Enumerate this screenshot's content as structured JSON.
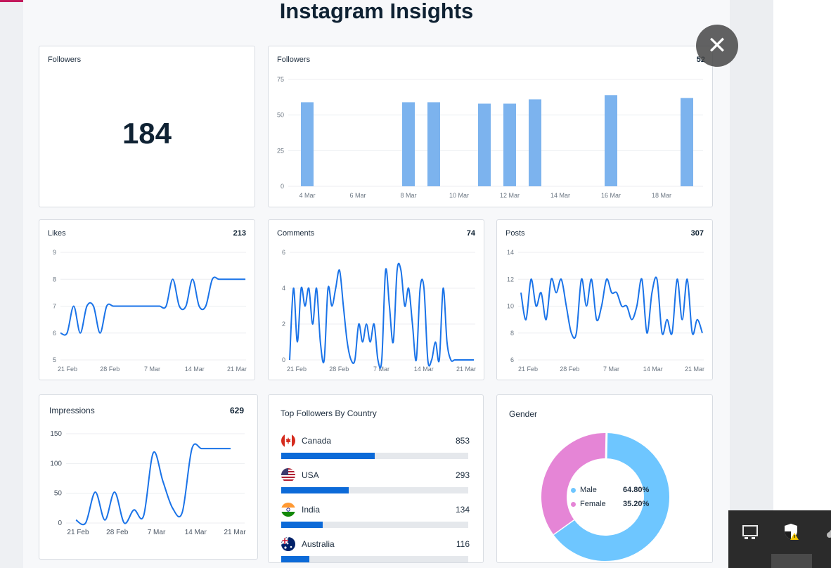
{
  "app": {
    "title": "Instagram Insights"
  },
  "cards": {
    "followers_total": {
      "title": "Followers",
      "value": "184"
    },
    "followers_daily": {
      "title": "Followers",
      "total": "52",
      "chart_data": {
        "type": "bar",
        "x_ticks": [
          "4 Mar",
          "6 Mar",
          "8 Mar",
          "10 Mar",
          "12 Mar",
          "14 Mar",
          "16 Mar",
          "18 Mar"
        ],
        "y_ticks": [
          "0",
          "25",
          "50",
          "75"
        ],
        "ylim": [
          0,
          75
        ],
        "categories": [
          "4 Mar",
          "8 Mar",
          "9 Mar",
          "11 Mar",
          "12 Mar",
          "13 Mar",
          "16 Mar",
          "19 Mar"
        ],
        "values": [
          59,
          59,
          59,
          58,
          58,
          61,
          64,
          62
        ],
        "color": "#7cb3ee"
      }
    },
    "likes": {
      "title": "Likes",
      "total": "213",
      "chart_data": {
        "type": "line",
        "x_ticks": [
          "21 Feb",
          "28 Feb",
          "7 Mar",
          "14 Mar",
          "21 Mar"
        ],
        "y_ticks": [
          "5",
          "6",
          "7",
          "8",
          "9"
        ],
        "ylim": [
          5,
          9
        ],
        "x": [
          0,
          1,
          2,
          3,
          4,
          5,
          6,
          7,
          8,
          9,
          10,
          11,
          12,
          13,
          14,
          15,
          16,
          17,
          18,
          19,
          20,
          21,
          22,
          23,
          24,
          25,
          26,
          27,
          28
        ],
        "values": [
          6,
          6,
          7,
          6,
          7,
          7,
          6,
          7,
          7,
          7,
          7,
          7,
          7,
          7,
          7,
          7,
          7,
          8,
          7,
          7,
          8,
          7,
          7,
          8,
          8,
          8,
          8,
          8,
          8
        ],
        "color": "#1a73e8"
      }
    },
    "comments": {
      "title": "Comments",
      "total": "74",
      "chart_data": {
        "type": "line",
        "x_ticks": [
          "21 Feb",
          "28 Feb",
          "7 Mar",
          "14 Mar",
          "21 Mar"
        ],
        "y_ticks": [
          "0",
          "2",
          "4",
          "6"
        ],
        "ylim": [
          0,
          6
        ],
        "x": [
          0,
          1,
          2,
          3,
          4,
          5,
          6,
          7,
          8,
          9,
          10,
          11,
          12,
          13,
          14,
          15,
          16,
          17,
          18,
          19,
          20,
          21,
          22,
          23,
          24,
          25,
          26,
          27,
          28,
          29,
          30,
          31,
          32,
          33,
          34,
          35,
          36,
          37,
          38,
          39,
          40,
          41,
          42,
          43,
          44,
          45,
          46,
          47,
          48
        ],
        "values": [
          0,
          4,
          1,
          4,
          3,
          4,
          2,
          4,
          1,
          0,
          4,
          3,
          4,
          5,
          3,
          1,
          0,
          0,
          2,
          1,
          2,
          1,
          2,
          0,
          0,
          5,
          3,
          1,
          5,
          5,
          3,
          4,
          2,
          0,
          4,
          4,
          0,
          0,
          1,
          0,
          4,
          1,
          0,
          0,
          0,
          0,
          0,
          0,
          0
        ],
        "color": "#1a73e8"
      }
    },
    "posts": {
      "title": "Posts",
      "total": "307",
      "chart_data": {
        "type": "line",
        "x_ticks": [
          "21 Feb",
          "28 Feb",
          "7 Mar",
          "14 Mar",
          "21 Mar"
        ],
        "y_ticks": [
          "6",
          "8",
          "10",
          "12",
          "14"
        ],
        "ylim": [
          6,
          14
        ],
        "x": [
          0,
          1,
          2,
          3,
          4,
          5,
          6,
          7,
          8,
          9,
          10,
          11,
          12,
          13,
          14,
          15,
          16,
          17,
          18,
          19,
          20,
          21,
          22,
          23,
          24,
          25,
          26,
          27,
          28,
          29,
          30,
          31,
          32,
          33,
          34,
          35,
          36
        ],
        "values": [
          11,
          9,
          12,
          10,
          11,
          9,
          12,
          11,
          12,
          10,
          8,
          8,
          12,
          10,
          12,
          9,
          10,
          12,
          11,
          11,
          10,
          10,
          9,
          10,
          12,
          8,
          11,
          12,
          8,
          9,
          8,
          12,
          9,
          12,
          8,
          9,
          8
        ],
        "color": "#1a73e8"
      }
    },
    "impressions": {
      "title": "Impressions",
      "total": "629",
      "chart_data": {
        "type": "line",
        "x_ticks": [
          "21 Feb",
          "28 Feb",
          "7 Mar",
          "14 Mar",
          "21 Mar"
        ],
        "y_ticks": [
          "0",
          "50",
          "100",
          "150"
        ],
        "ylim": [
          0,
          150
        ],
        "x": [
          0,
          1,
          2,
          3,
          4,
          5,
          6,
          7,
          8,
          9,
          10,
          11,
          12,
          13,
          14,
          15,
          16
        ],
        "values": [
          5,
          0,
          52,
          5,
          52,
          0,
          22,
          12,
          118,
          70,
          25,
          18,
          125,
          125,
          125,
          125,
          125
        ],
        "color": "#1a73e8"
      }
    },
    "top_countries": {
      "title": "Top Followers By Country",
      "items": [
        {
          "name": "Canada",
          "count": "853",
          "share": 0.5,
          "flag": "canada-flag"
        },
        {
          "name": "USA",
          "count": "293",
          "share": 0.36,
          "flag": "usa-flag"
        },
        {
          "name": "India",
          "count": "134",
          "share": 0.22,
          "flag": "india-flag"
        },
        {
          "name": "Australia",
          "count": "116",
          "share": 0.15,
          "flag": "australia-flag"
        }
      ]
    },
    "gender": {
      "title": "Gender",
      "chart_data": {
        "type": "pie",
        "labels": [
          "Male",
          "Female"
        ],
        "values": [
          64.8,
          35.2
        ],
        "display": [
          "64.80%",
          "35.20%"
        ],
        "colors": [
          "#6ec6ff",
          "#e585d6"
        ]
      }
    }
  },
  "overlay": {
    "close_icon": "close-icon",
    "close_glyph": "✕"
  },
  "tray": {
    "icons": [
      "display-icon",
      "shield-warning-icon",
      "dropdown-icon"
    ]
  }
}
